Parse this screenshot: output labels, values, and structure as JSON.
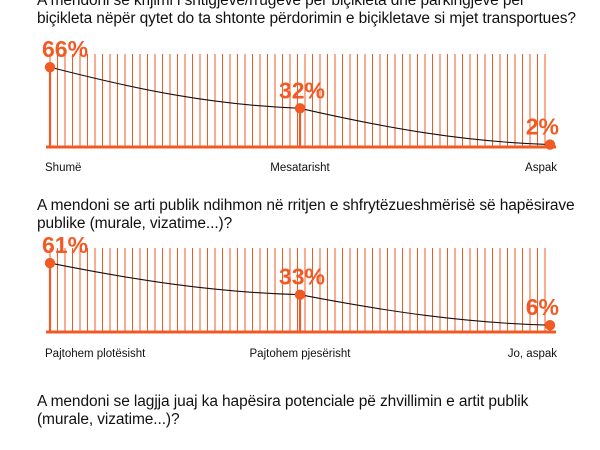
{
  "questions": [
    "A mendoni se krijimi i shtigjeve/rrugëve për biçikleta dhe parkingjeve për biçikleta nëpër qytet do ta shtonte përdorimin e biçikletave si mjet transportues?",
    "A mendoni se arti publik ndihmon në rritjen e shfrytëzueshmërisë së hapësirave publike (murale, vizatime...)?",
    "A mendoni se lagjja juaj ka hapësira potenciale pë zhvillimin e artit publik (murale, vizatime...)?"
  ],
  "colors": {
    "accent": "#f15a24",
    "line": "#111111",
    "text": "#111111"
  },
  "chart_data": [
    {
      "type": "line",
      "categories": [
        "Shumë",
        "Mesatarisht",
        "Aspak"
      ],
      "values": [
        66,
        32,
        2
      ],
      "data_labels": [
        "66%",
        "32%",
        "2%"
      ],
      "ylim": [
        0,
        100
      ]
    },
    {
      "type": "line",
      "categories": [
        "Pajtohem plotësisht",
        "Pajtohem pjesërisht",
        "Jo, aspak"
      ],
      "values": [
        61,
        33,
        6
      ],
      "data_labels": [
        "61%",
        "33%",
        "6%"
      ],
      "ylim": [
        0,
        100
      ]
    }
  ]
}
